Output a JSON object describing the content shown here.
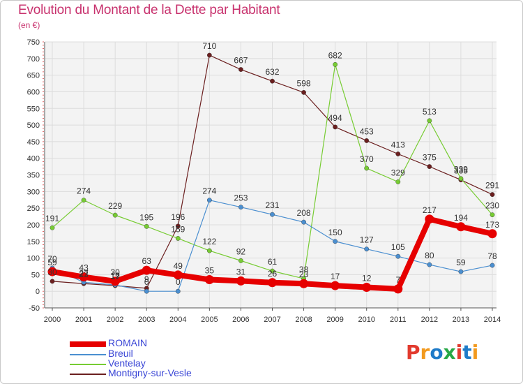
{
  "title": "Evolution du Montant de la Dette par Habitant",
  "subtitle": "(en €)",
  "logo": {
    "text": "Proxiti",
    "colors": [
      "#e23a2e",
      "#f29a1f",
      "#1f7bc8",
      "#27a845",
      "#e23a2e",
      "#1f7bc8",
      "#f29a1f"
    ]
  },
  "chart_data": {
    "type": "line",
    "x": [
      "2000",
      "2001",
      "2002",
      "2003",
      "2004",
      "2005",
      "2006",
      "2007",
      "2008",
      "2009",
      "2010",
      "2011",
      "2012",
      "2013",
      "2014"
    ],
    "ylim": [
      -50,
      750
    ],
    "yticks": [
      "-50",
      "0",
      "50",
      "100",
      "150",
      "200",
      "250",
      "300",
      "350",
      "400",
      "450",
      "500",
      "550",
      "600",
      "650",
      "700",
      "750"
    ],
    "grid": true,
    "legend_position": "bottom-left",
    "series": [
      {
        "name": "ROMAIN",
        "color": "#e60000",
        "emphasis": true,
        "values": [
          59,
          43,
          30,
          63,
          49,
          35,
          31,
          26,
          23,
          17,
          12,
          7,
          217,
          194,
          173
        ],
        "labels": [
          "59",
          "43",
          "30",
          "63",
          "49",
          "35",
          "31",
          "26",
          "23",
          "17",
          "12",
          "7",
          "217",
          "194",
          "173"
        ]
      },
      {
        "name": "Breuil",
        "color": "#4b8fd0",
        "values": [
          70,
          27,
          19,
          0,
          0,
          274,
          253,
          231,
          208,
          150,
          127,
          105,
          80,
          59,
          78
        ],
        "labels": [
          "70",
          "27",
          "19",
          "0",
          "0",
          "274",
          "253",
          "231",
          "208",
          "150",
          "127",
          "105",
          "80",
          "59",
          "78"
        ]
      },
      {
        "name": "Ventelay",
        "color": "#77cc33",
        "values": [
          191,
          274,
          229,
          195,
          159,
          122,
          92,
          61,
          38,
          682,
          370,
          329,
          513,
          339,
          230
        ],
        "labels": [
          "191",
          "274",
          "229",
          "195",
          "159",
          "122",
          "92",
          "61",
          "38",
          "682",
          "370",
          "329",
          "513",
          "339",
          "230"
        ]
      },
      {
        "name": "Montigny-sur-Vesle",
        "color": "#6b1f1f",
        "values": [
          30,
          23,
          17,
          9,
          196,
          710,
          667,
          632,
          598,
          494,
          453,
          413,
          375,
          335,
          291
        ],
        "labels": [
          "30",
          "23",
          "17",
          "9",
          "196",
          "710",
          "667",
          "632",
          "598",
          "494",
          "453",
          "413",
          "375",
          "335",
          "291"
        ]
      }
    ]
  }
}
